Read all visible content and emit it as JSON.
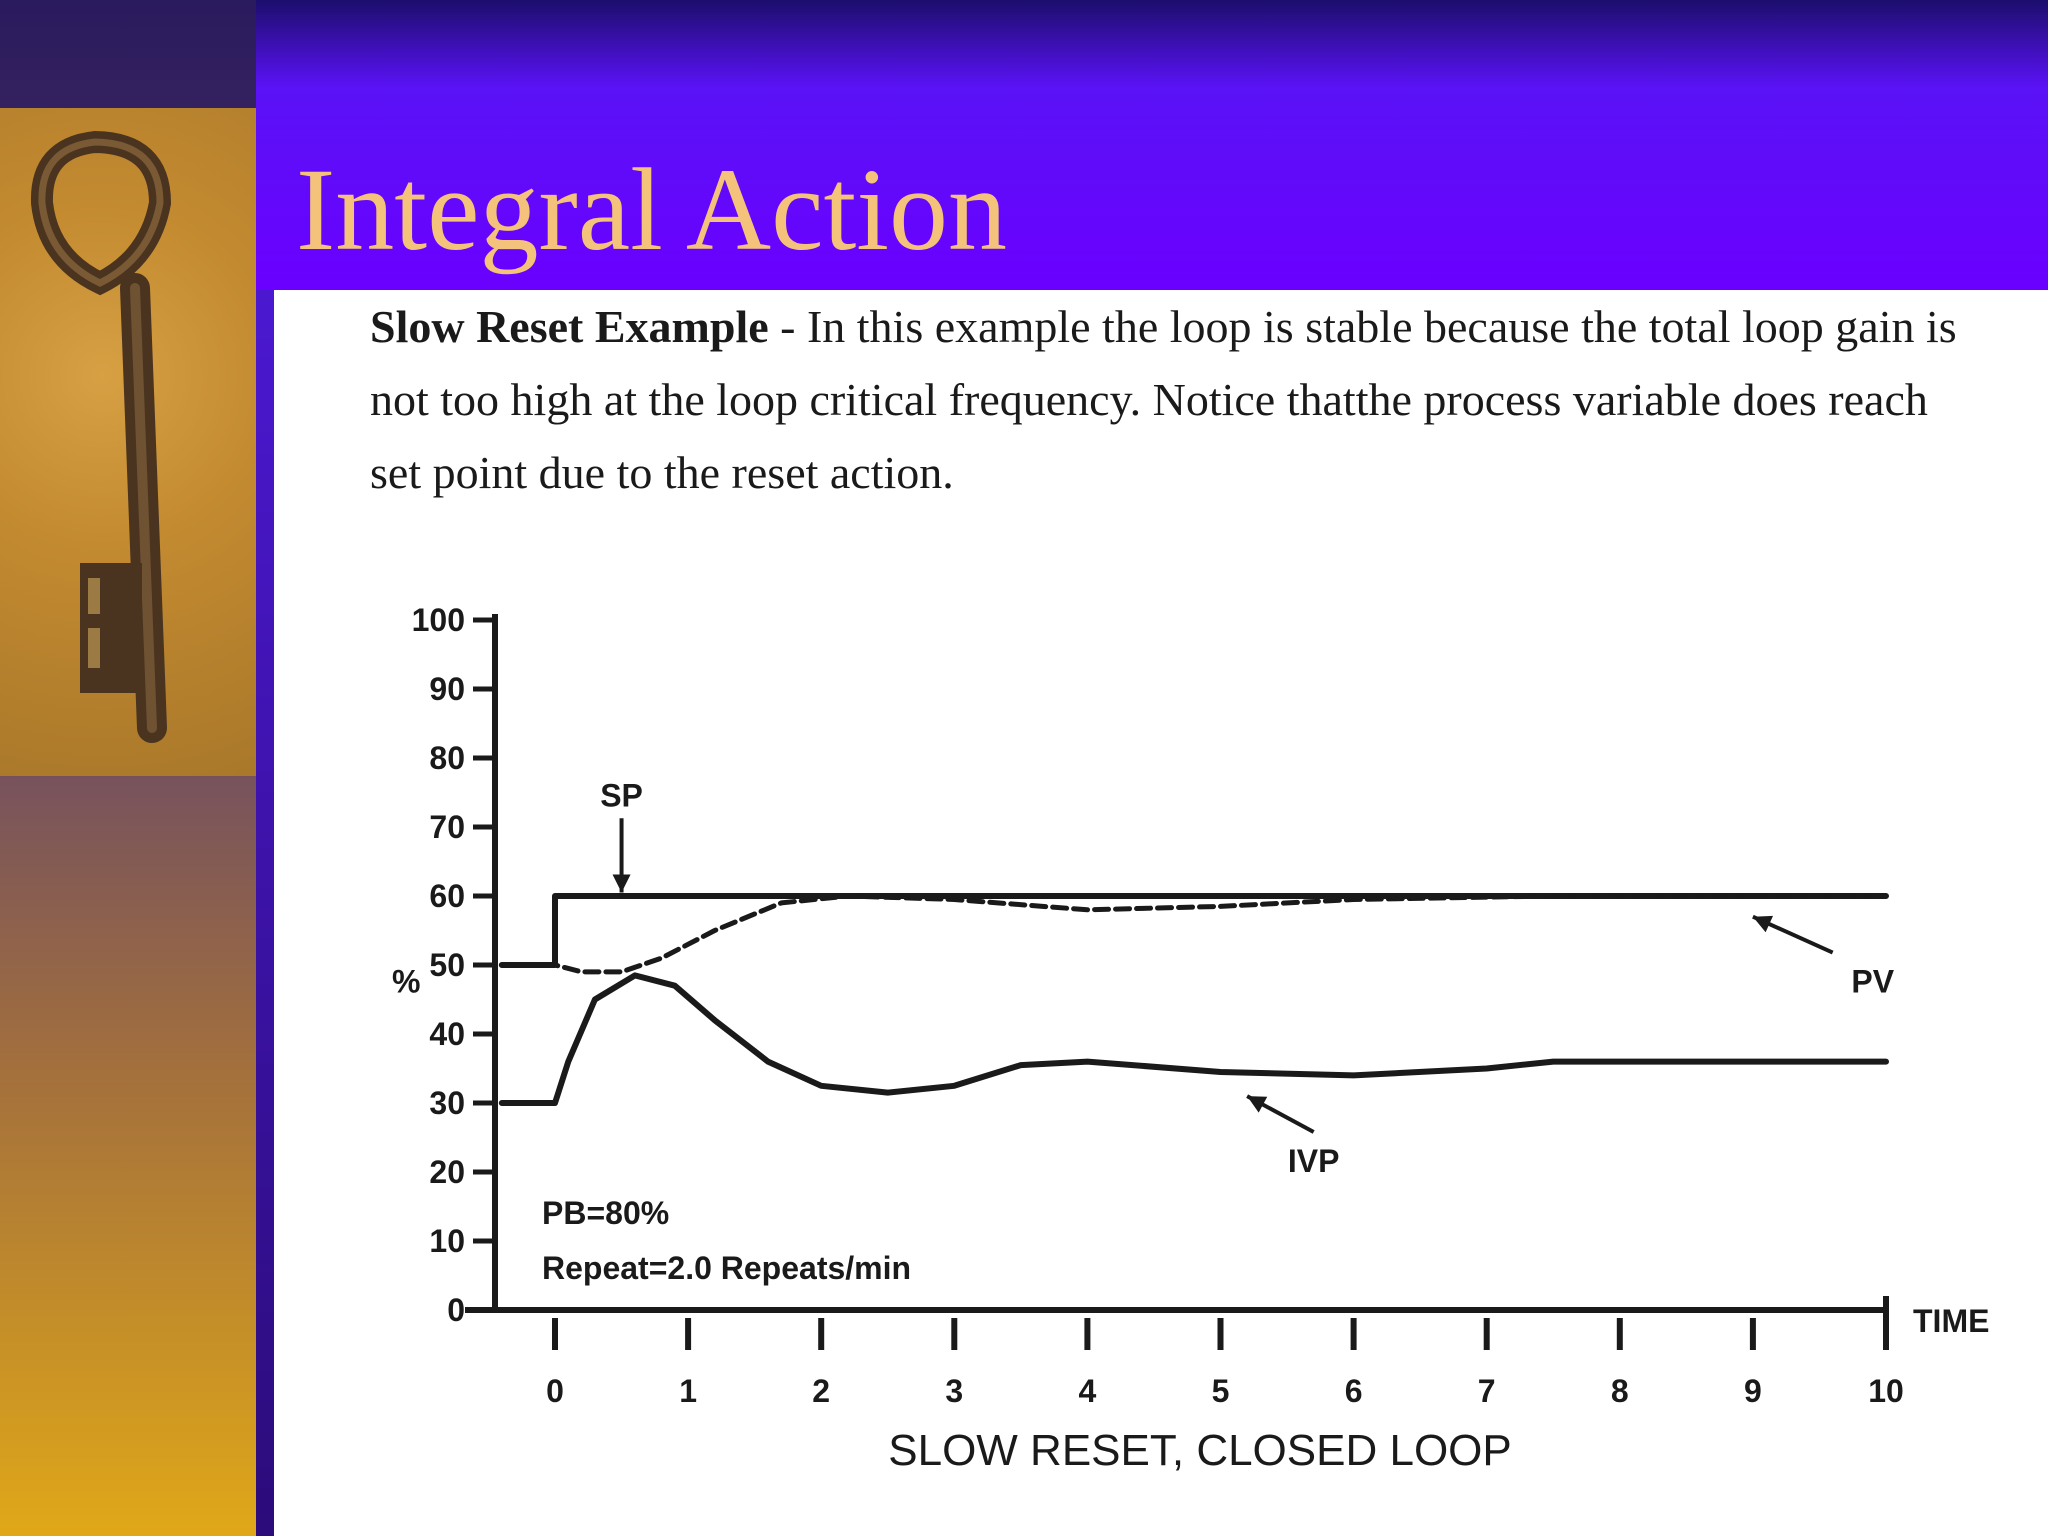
{
  "slide": {
    "title": "Integral Action",
    "description_bold": "Slow Reset Example",
    "description_text": " - In this example the loop is stable because the total loop gain is not too high at the loop critical frequency. Notice thatthe process variable does reach set point due to the reset action."
  },
  "colors": {
    "title": "#f4c27a",
    "band": "#6a00ff",
    "sidebar_top": "#2a1a5e",
    "sidebar_bottom": "#e0a818",
    "trace": "#1a1a1a"
  },
  "sidebar": {
    "image": "old-key-icon"
  },
  "chart_data": {
    "type": "line",
    "title": "SLOW RESET, CLOSED LOOP",
    "xlabel": "TIME",
    "ylabel": "%",
    "xlim": [
      0,
      10
    ],
    "ylim": [
      0,
      100
    ],
    "x_ticks": [
      0,
      1,
      2,
      3,
      4,
      5,
      6,
      7,
      8,
      9,
      10
    ],
    "y_ticks": [
      0,
      10,
      20,
      30,
      40,
      50,
      60,
      70,
      80,
      90,
      100
    ],
    "grid": false,
    "parameters": [
      "PB=80%",
      "Repeat=2.0 Repeats/min"
    ],
    "series": [
      {
        "name": "SP",
        "style": "solid",
        "x": [
          -0.4,
          0,
          0,
          10
        ],
        "y": [
          50,
          50,
          60,
          60
        ]
      },
      {
        "name": "PV",
        "style": "dashed",
        "x": [
          -0.4,
          0,
          0.2,
          0.5,
          0.8,
          1.2,
          1.7,
          2.2,
          3.0,
          4.0,
          5.0,
          6.0,
          7.5,
          10.0
        ],
        "y": [
          50,
          50,
          49,
          49,
          51,
          55,
          59,
          60,
          59.5,
          58,
          58.5,
          59.5,
          60,
          60
        ]
      },
      {
        "name": "IVP",
        "style": "solid",
        "x": [
          -0.4,
          0,
          0.1,
          0.3,
          0.6,
          0.9,
          1.2,
          1.6,
          2.0,
          2.5,
          3.0,
          3.5,
          4.0,
          5.0,
          6.0,
          7.0,
          7.5,
          8.0,
          10.0
        ],
        "y": [
          30,
          30,
          36,
          45,
          48.5,
          47,
          42,
          36,
          32.5,
          31.5,
          32.5,
          35.5,
          36,
          34.5,
          34,
          35,
          36,
          36,
          36
        ]
      }
    ],
    "annotations": [
      {
        "text": "SP",
        "x": 0.5,
        "y": 73,
        "arrow_to": [
          0.5,
          60.5
        ]
      },
      {
        "text": "PV",
        "x": 9.9,
        "y": 46,
        "arrow_to": [
          9.0,
          57
        ]
      },
      {
        "text": "IVP",
        "x": 5.7,
        "y": 20,
        "arrow_to": [
          5.2,
          31
        ]
      }
    ]
  }
}
